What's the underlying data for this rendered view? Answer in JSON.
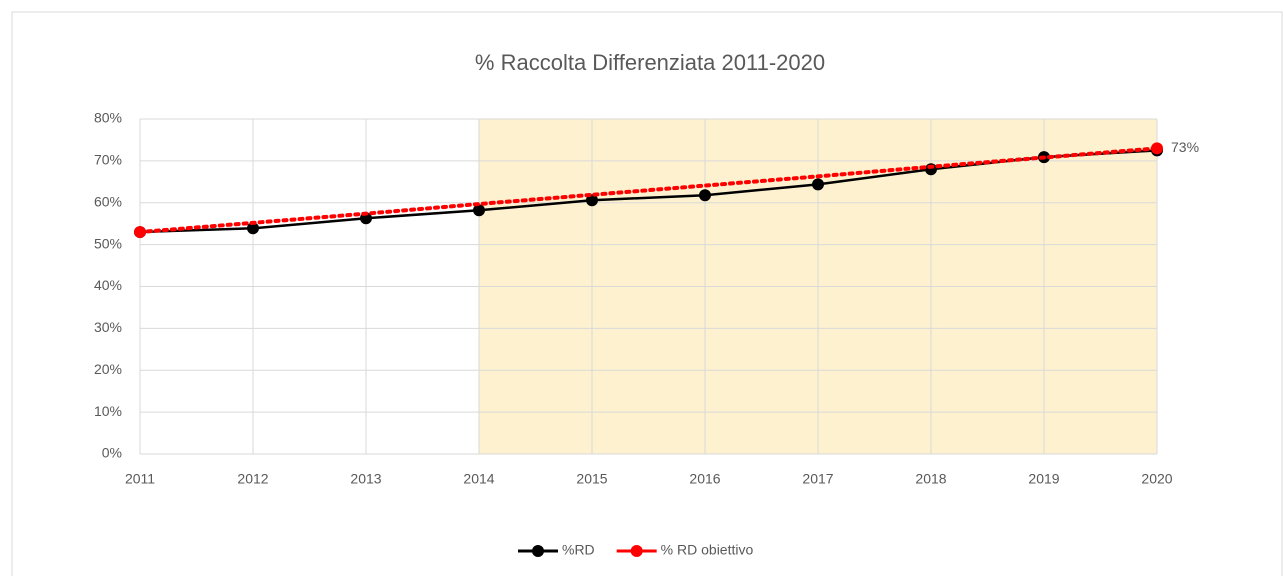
{
  "chart_data": {
    "type": "line",
    "title": "% Raccolta Differenziata 2011-2020",
    "x": [
      2011,
      2012,
      2013,
      2014,
      2015,
      2016,
      2017,
      2018,
      2019,
      2020
    ],
    "xlim": [
      2011,
      2020
    ],
    "xticks": [
      2011,
      2012,
      2013,
      2014,
      2015,
      2016,
      2017,
      2018,
      2019,
      2020
    ],
    "ylim": [
      0,
      80
    ],
    "yticks": [
      {
        "value": 0,
        "label": "0%"
      },
      {
        "value": 10,
        "label": "10%"
      },
      {
        "value": 20,
        "label": "20%"
      },
      {
        "value": 30,
        "label": "30%"
      },
      {
        "value": 40,
        "label": "40%"
      },
      {
        "value": 50,
        "label": "50%"
      },
      {
        "value": 60,
        "label": "60%"
      },
      {
        "value": 70,
        "label": "70%"
      },
      {
        "value": 80,
        "label": "80%"
      }
    ],
    "grid": true,
    "shaded_x": [
      2014,
      2020
    ],
    "shade_color": "#fdf1cf",
    "legend": "bottom",
    "series": [
      {
        "name": "%RD",
        "color": "#000000",
        "style": "solid",
        "markers": "all",
        "values": [
          53,
          53.9,
          56.3,
          58.2,
          60.6,
          61.8,
          64.4,
          68,
          70.9,
          72.5
        ]
      },
      {
        "name": "% RD obiettivo",
        "color": "#ff0000",
        "style": "dotted",
        "markers": "ends",
        "values": [
          53,
          55.2,
          57.4,
          59.7,
          61.9,
          64.1,
          66.3,
          68.6,
          70.8,
          73
        ],
        "value_labels": [
          null,
          null,
          null,
          null,
          null,
          null,
          null,
          null,
          null,
          "73%"
        ]
      }
    ]
  }
}
